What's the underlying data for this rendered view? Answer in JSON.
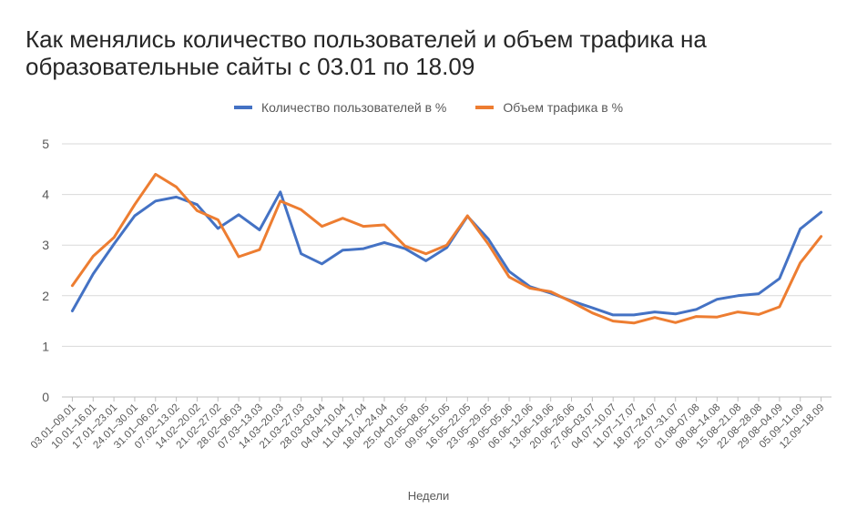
{
  "chart_data": {
    "type": "line",
    "title": "Как менялись количество пользователей и объем трафика на образовательные сайты с 03.01 по 18.09",
    "xlabel": "Недели",
    "ylabel": "",
    "ylim": [
      0,
      5
    ],
    "yticks": [
      "0",
      "1",
      "2",
      "3",
      "4",
      "5"
    ],
    "grid": true,
    "legend_position": "top-center",
    "categories": [
      "03.01–09.01",
      "10.01–16.01",
      "17.01–23.01",
      "24.01–30.01",
      "31.01–06.02",
      "07.02–13.02",
      "14.02–20.02",
      "21.02–27.02",
      "28.02–06.03",
      "07.03–13.03",
      "14.03–20.03",
      "21.03–27.03",
      "28.03–03.04",
      "04.04–10.04",
      "11.04–17.04",
      "18.04–24.04",
      "25.04–01.05",
      "02.05–08.05",
      "09.05–15.05",
      "16.05–22.05",
      "23.05–29.05",
      "30.05–05.06",
      "06.06–12.06",
      "13.06–19.06",
      "20.06–26.06",
      "27.06–03.07",
      "04.07–10.07",
      "11.07–17.07",
      "18.07–24.07",
      "25.07–31.07",
      "01.08–07.08",
      "08.08–14.08",
      "15.08–21.08",
      "22.08–28.08",
      "29.08–04.09",
      "05.09–11.09",
      "12.09–18.09"
    ],
    "series": [
      {
        "name": "Количество пользователей в %",
        "color": "#4472C4",
        "values": [
          1.7,
          2.43,
          3.02,
          3.58,
          3.87,
          3.95,
          3.8,
          3.33,
          3.6,
          3.3,
          4.05,
          2.83,
          2.63,
          2.9,
          2.93,
          3.05,
          2.93,
          2.69,
          2.95,
          3.57,
          3.12,
          2.48,
          2.18,
          2.05,
          1.9,
          1.76,
          1.62,
          1.62,
          1.68,
          1.64,
          1.73,
          1.93,
          2.0,
          2.04,
          2.34,
          3.32,
          3.65
        ]
      },
      {
        "name": "Объем трафика в %",
        "color": "#ED7D31",
        "values": [
          2.2,
          2.78,
          3.15,
          3.8,
          4.4,
          4.15,
          3.68,
          3.5,
          2.77,
          2.91,
          3.87,
          3.7,
          3.37,
          3.53,
          3.37,
          3.4,
          2.98,
          2.83,
          3.0,
          3.58,
          3.02,
          2.37,
          2.15,
          2.08,
          1.88,
          1.66,
          1.5,
          1.46,
          1.57,
          1.47,
          1.59,
          1.58,
          1.68,
          1.63,
          1.78,
          2.65,
          3.17
        ]
      }
    ]
  }
}
